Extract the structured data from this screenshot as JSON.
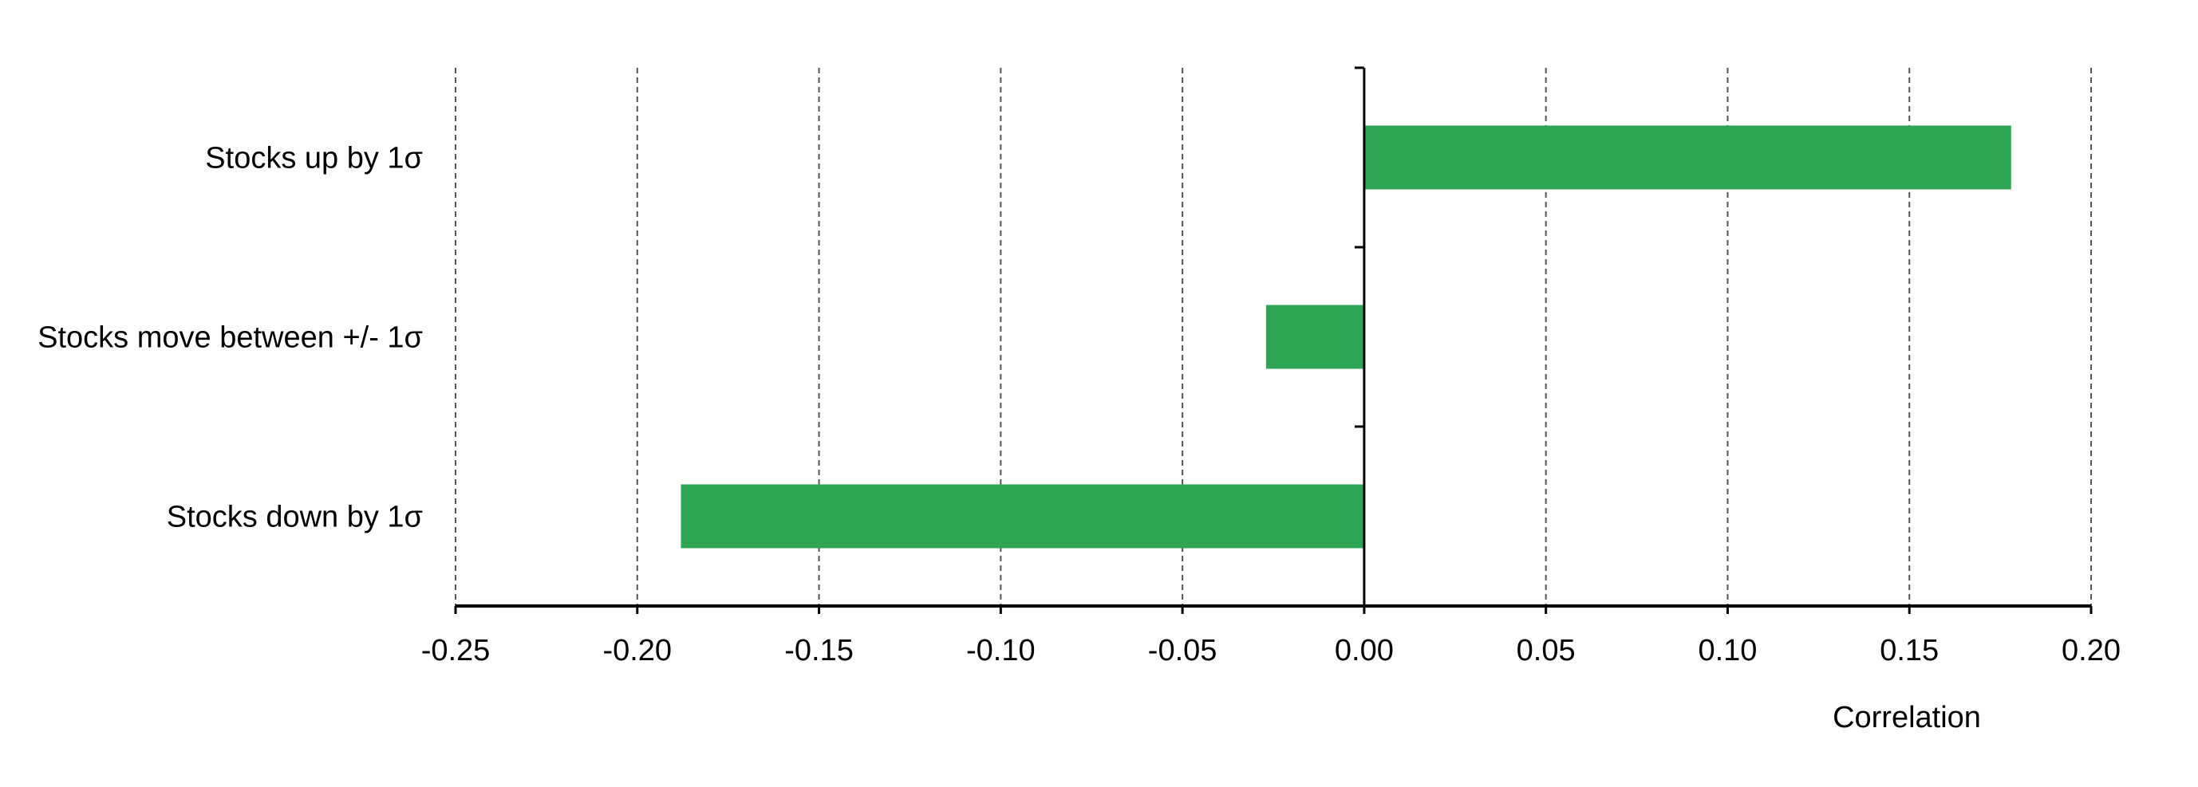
{
  "chart_data": {
    "type": "bar",
    "orientation": "horizontal",
    "categories": [
      "Stocks up by 1σ",
      "Stocks move between +/- 1σ",
      "Stocks down by 1σ"
    ],
    "values": [
      0.178,
      -0.027,
      -0.188
    ],
    "xlabel": "Correlation",
    "xlim": [
      -0.25,
      0.2
    ],
    "x_ticks": [
      "-0.25",
      "-0.20",
      "-0.15",
      "-0.10",
      "-0.05",
      "0.00",
      "0.05",
      "0.10",
      "0.15",
      "0.20"
    ],
    "grid": "vertical dashed",
    "legend": "none",
    "colors": {
      "bar": "#2EA553",
      "axis": "#000000",
      "grid": "#555555"
    }
  }
}
